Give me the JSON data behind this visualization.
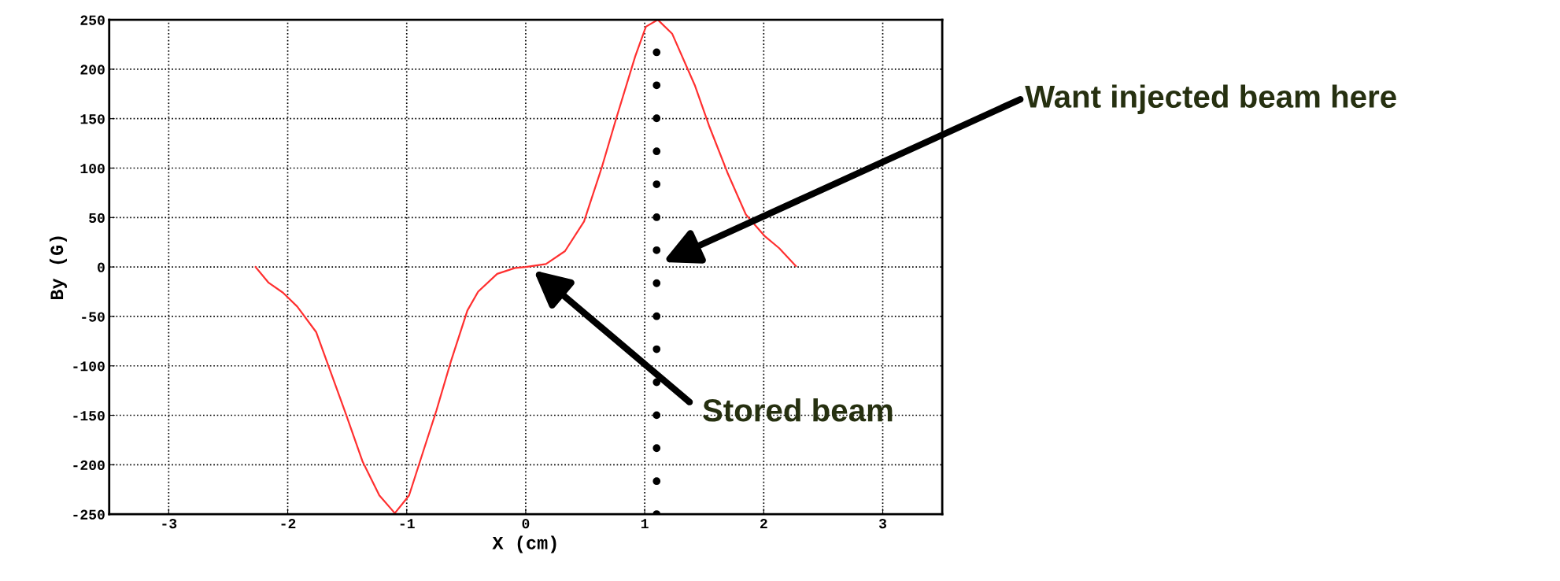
{
  "chart_data": {
    "type": "line",
    "xlabel": "X (cm)",
    "ylabel": "By (G)",
    "xlim": [
      -3.5,
      3.5
    ],
    "ylim": [
      -250,
      250
    ],
    "xticks": [
      -3,
      -2,
      -1,
      0,
      1,
      2,
      3
    ],
    "yticks": [
      -250,
      -200,
      -150,
      -100,
      -50,
      0,
      50,
      100,
      150,
      200,
      250
    ],
    "grid": true,
    "marker": "none",
    "line_style": "solid",
    "series": [
      {
        "color": "#ff3030",
        "x": [
          -2.27,
          -2.16,
          -2.04,
          -1.92,
          -1.76,
          -1.67,
          -1.51,
          -1.37,
          -1.23,
          -1.1,
          -0.98,
          -0.86,
          -0.75,
          -0.63,
          -0.49,
          -0.4,
          -0.24,
          -0.09,
          0,
          0.17,
          0.33,
          0.49,
          0.64,
          0.76,
          0.92,
          1.01,
          1.11,
          1.23,
          1.42,
          1.54,
          1.7,
          1.85,
          2.01,
          2.13,
          2.27
        ],
        "values": [
          0,
          -16,
          -26,
          -40,
          -66,
          -96,
          -149,
          -197,
          -231,
          -249,
          -231,
          -186,
          -145,
          -96,
          -44,
          -25,
          -7,
          -1,
          0,
          3,
          16,
          46,
          101,
          150,
          213,
          243,
          250,
          236,
          184,
          143,
          94,
          53,
          31,
          19,
          1
        ]
      }
    ],
    "ref_lines": [
      {
        "axis": "x",
        "value": 1.1,
        "color": "#000000",
        "line_style": "dotted"
      }
    ],
    "annotations": [
      "Want injected beam here",
      "Stored beam"
    ]
  }
}
